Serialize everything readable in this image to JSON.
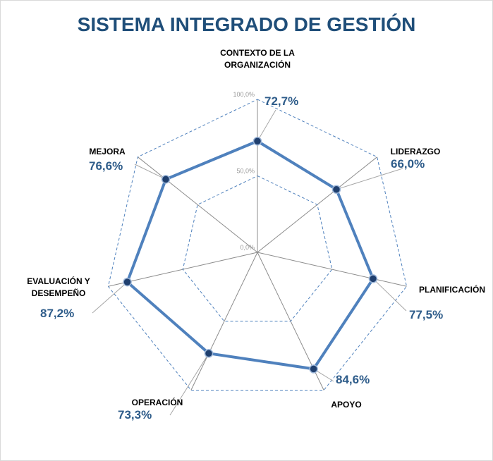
{
  "chart_data": {
    "type": "radar",
    "title": "SISTEMA INTEGRADO DE GESTIÓN",
    "categories": [
      "CONTEXTO DE LA ORGANIZACIÓN",
      "LIDERAZGO",
      "PLANIFICACIÓN",
      "APOYO",
      "OPERACIÓN",
      "EVALUACIÓN Y DESEMPEÑO",
      "MEJORA"
    ],
    "values": [
      72.7,
      66.0,
      77.5,
      84.6,
      73.3,
      87.2,
      76.6
    ],
    "value_labels": [
      "72,7%",
      "66,0%",
      "77,5%",
      "84,6%",
      "73,3%",
      "87,2%",
      "76,6%"
    ],
    "color": "#4f81bd",
    "ylim": [
      0,
      100
    ],
    "yticks": [
      {
        "value": 0,
        "label": "0,0%"
      },
      {
        "value": 50,
        "label": "50,0%"
      },
      {
        "value": 100,
        "label": "100,0%"
      }
    ],
    "grid": true
  }
}
